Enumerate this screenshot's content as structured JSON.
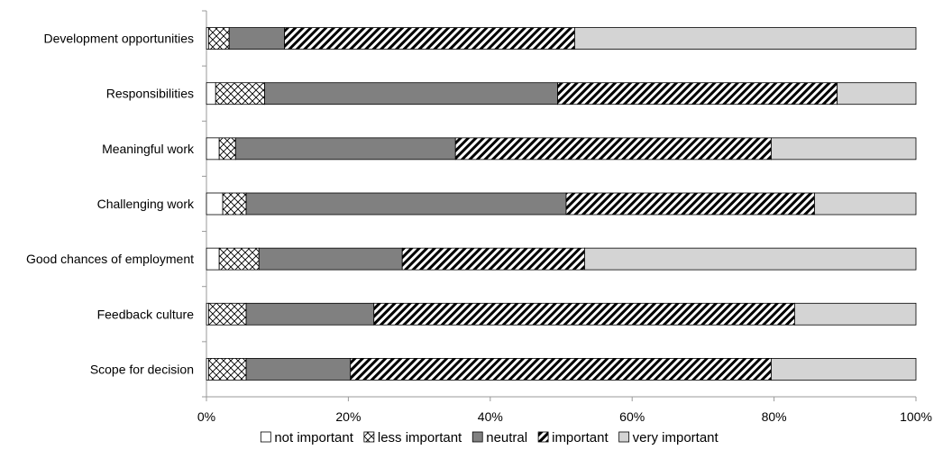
{
  "chart_data": {
    "type": "bar",
    "orientation": "horizontal",
    "stacked": "percent",
    "categories": [
      "Development opportunities",
      "Responsibilities",
      "Meaningful work",
      "Challenging work",
      "Good chances of employment",
      "Feedback culture",
      "Scope for decision"
    ],
    "series": [
      {
        "name": "not important",
        "values": [
          0.3,
          1.3,
          1.8,
          2.3,
          1.8,
          0.3,
          0.3
        ]
      },
      {
        "name": "less important",
        "values": [
          2.9,
          6.9,
          2.3,
          3.3,
          5.6,
          5.3,
          5.3
        ]
      },
      {
        "name": "neutral",
        "values": [
          7.8,
          41.3,
          31.0,
          45.1,
          20.2,
          18.0,
          14.7
        ]
      },
      {
        "name": "important",
        "values": [
          40.9,
          39.4,
          44.5,
          35.0,
          25.7,
          59.3,
          59.3
        ]
      },
      {
        "name": "very important",
        "values": [
          48.1,
          11.1,
          20.4,
          14.3,
          46.7,
          17.1,
          20.4
        ]
      }
    ],
    "xlim": [
      0,
      100
    ],
    "xticks": [
      "0%",
      "20%",
      "40%",
      "60%",
      "80%",
      "100%"
    ],
    "grid": false,
    "legend_position": "bottom",
    "colors": {
      "not important": "#ffffff",
      "less important": "crosshatch",
      "neutral": "#808080",
      "important": "diagonal-stripes",
      "very important": "#d4d4d4"
    }
  }
}
